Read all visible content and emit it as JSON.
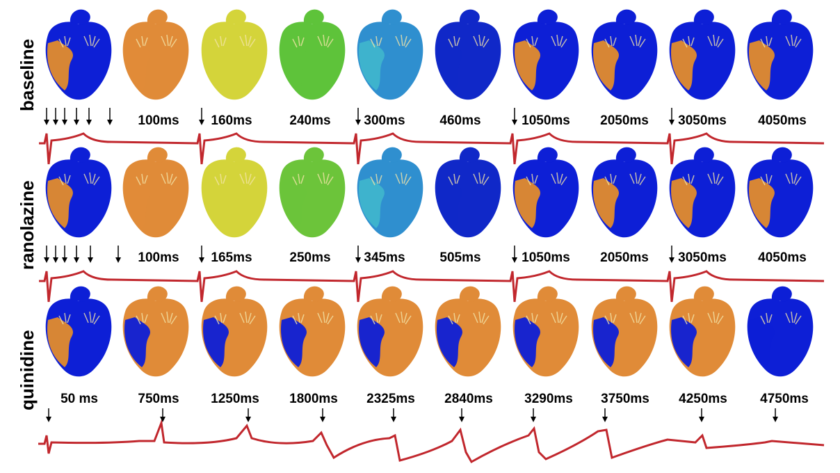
{
  "rows": [
    {
      "label": "baseline",
      "times": [
        "100ms",
        "160ms",
        "240ms",
        "300ms",
        "460ms",
        "1050ms",
        "2050ms",
        "3050ms",
        "4050ms"
      ],
      "heart_colors": [
        {
          "base": "#0d1fd6",
          "patch": "#e38c2c"
        },
        {
          "base": "#e08b38",
          "patch": "#e08b38"
        },
        {
          "base": "#d4d43a",
          "patch": "#d4d43a"
        },
        {
          "base": "#5ec33a",
          "patch": "#5ec33a"
        },
        {
          "base": "#2f8fcf",
          "patch": "#3fb5cc"
        },
        {
          "base": "#1028c8",
          "patch": "#1028c8"
        },
        {
          "base": "#0d1fd6",
          "patch": "#e38c2c"
        },
        {
          "base": "#0d1fd6",
          "patch": "#e38c2c"
        },
        {
          "base": "#0d1fd6",
          "patch": "#e38c2c"
        },
        {
          "base": "#0d1fd6",
          "patch": "#e38c2c"
        }
      ]
    },
    {
      "label": "ranolazine",
      "times": [
        "100ms",
        "165ms",
        "250ms",
        "345ms",
        "505ms",
        "1050ms",
        "2050ms",
        "3050ms",
        "4050ms"
      ],
      "heart_colors": [
        {
          "base": "#0d1fd6",
          "patch": "#e38c2c"
        },
        {
          "base": "#e08b38",
          "patch": "#e08b38"
        },
        {
          "base": "#d4d43a",
          "patch": "#d4d43a"
        },
        {
          "base": "#6cc43a",
          "patch": "#6cc43a"
        },
        {
          "base": "#2f8fcf",
          "patch": "#3fb5cc"
        },
        {
          "base": "#1028c8",
          "patch": "#1028c8"
        },
        {
          "base": "#0d1fd6",
          "patch": "#e38c2c"
        },
        {
          "base": "#0d1fd6",
          "patch": "#e38c2c"
        },
        {
          "base": "#0d1fd6",
          "patch": "#e38c2c"
        },
        {
          "base": "#0d1fd6",
          "patch": "#e38c2c"
        }
      ]
    },
    {
      "label": "quinidine",
      "times": [
        "50 ms",
        "750ms",
        "1250ms",
        "1800ms",
        "2325ms",
        "2840ms",
        "3290ms",
        "3750ms",
        "4250ms",
        "4750ms"
      ],
      "heart_colors": [
        {
          "base": "#0d1fd6",
          "patch": "#e38c2c"
        },
        {
          "base": "#e08b38",
          "patch": "#0d1fd6"
        },
        {
          "base": "#e08b38",
          "patch": "#0d1fd6"
        },
        {
          "base": "#e08b38",
          "patch": "#0d1fd6"
        },
        {
          "base": "#e08b38",
          "patch": "#0d1fd6"
        },
        {
          "base": "#e08b38",
          "patch": "#0d1fd6"
        },
        {
          "base": "#e08b38",
          "patch": "#0d1fd6"
        },
        {
          "base": "#e08b38",
          "patch": "#0d1fd6"
        },
        {
          "base": "#e08b38",
          "patch": "#0d1fd6"
        },
        {
          "base": "#0d1fd6",
          "patch": "#0d1fd6"
        }
      ]
    }
  ],
  "colors": {
    "ecg_trace": "#c1272d",
    "arrow": "#000000",
    "label_text": "#000000"
  },
  "icons": {
    "heart": "heart-simulation-icon",
    "marker": "down-arrow-icon"
  }
}
